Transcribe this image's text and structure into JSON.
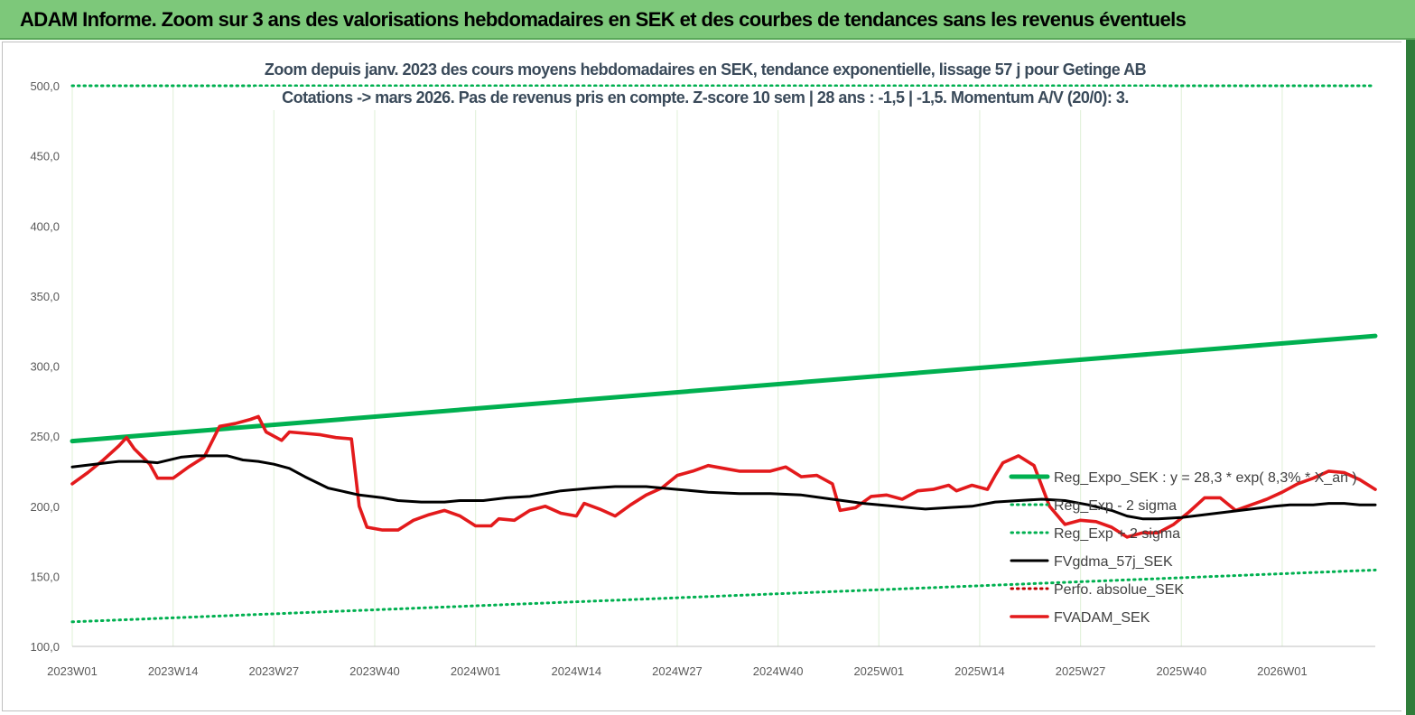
{
  "banner": {
    "title": "ADAM Informe. Zoom sur 3 ans des valorisations hebdomadaires en SEK et des courbes de tendances sans les revenus éventuels"
  },
  "colors": {
    "banner_bg": "#7dc87a",
    "reg_expo": "#00b050",
    "sigma": "#00b050",
    "fvgdma": "#000000",
    "perfo": "#c00000",
    "fvadam": "#e31a1c",
    "grid": "#e4f2dd"
  },
  "chart_data": {
    "type": "line",
    "title_lines": [
      "Zoom depuis janv. 2023 des cours moyens hebdomadaires en SEK, tendance exponentielle, lissage 57 j pour Getinge AB",
      "Cotations -> mars 2026. Pas de revenus pris en compte. Z-score 10 sem  | 28 ans : -1,5 | -1,5. Momentum A/V (20/0): 3."
    ],
    "xlabel": "",
    "ylabel": "",
    "ylim": [
      100,
      500
    ],
    "yticks": [
      "100,0",
      "150,0",
      "200,0",
      "250,0",
      "300,0",
      "350,0",
      "400,0",
      "450,0",
      "500,0"
    ],
    "x_tick_labels": [
      "2023W01",
      "2023W14",
      "2023W27",
      "2023W40",
      "2024W01",
      "2024W14",
      "2024W27",
      "2024W40",
      "2025W01",
      "2025W14",
      "2025W27",
      "2025W40",
      "2026W01"
    ],
    "weeks_total": 168,
    "grid": "vertical",
    "legend_position": "right",
    "series": [
      {
        "name": "Reg_Expo_SEK : y = 28,3 * exp( 8,3% *  X_an )",
        "style": "solid-thick",
        "color": "#00b050",
        "points": [
          [
            0,
            246.5
          ],
          [
            168,
            321.5
          ]
        ]
      },
      {
        "name": "Reg_Exp - 2 sigma",
        "style": "dotted",
        "color": "#00b050",
        "points": [
          [
            0,
            117.5
          ],
          [
            168,
            154.5
          ]
        ]
      },
      {
        "name": "Reg_Exp + 2 sigma",
        "style": "dotted",
        "color": "#00b050",
        "points": [
          [
            0,
            500
          ],
          [
            168,
            500
          ]
        ]
      },
      {
        "name": "FVgdma_57j_SEK",
        "style": "solid",
        "color": "#000000",
        "points": [
          [
            0,
            228
          ],
          [
            6,
            232
          ],
          [
            9,
            232
          ],
          [
            11,
            231
          ],
          [
            14,
            235
          ],
          [
            16,
            236
          ],
          [
            20,
            236
          ],
          [
            22,
            233
          ],
          [
            24,
            232
          ],
          [
            26,
            230
          ],
          [
            28,
            227
          ],
          [
            30,
            221
          ],
          [
            33,
            213
          ],
          [
            37,
            208
          ],
          [
            40,
            206
          ],
          [
            42,
            204
          ],
          [
            45,
            203
          ],
          [
            48,
            203
          ],
          [
            50,
            204
          ],
          [
            53,
            204
          ],
          [
            56,
            206
          ],
          [
            59,
            207
          ],
          [
            63,
            211
          ],
          [
            67,
            213
          ],
          [
            70,
            214
          ],
          [
            74,
            214
          ],
          [
            78,
            212
          ],
          [
            82,
            210
          ],
          [
            86,
            209
          ],
          [
            90,
            209
          ],
          [
            94,
            208
          ],
          [
            98,
            205
          ],
          [
            102,
            202
          ],
          [
            106,
            200
          ],
          [
            110,
            198
          ],
          [
            113,
            199
          ],
          [
            116,
            200
          ],
          [
            119,
            203
          ],
          [
            122,
            204
          ],
          [
            125,
            205
          ],
          [
            128,
            204
          ],
          [
            131,
            201
          ],
          [
            134,
            197
          ],
          [
            136,
            193
          ],
          [
            138,
            191
          ],
          [
            140,
            191
          ],
          [
            143,
            192
          ],
          [
            146,
            194
          ],
          [
            149,
            196
          ],
          [
            152,
            198
          ],
          [
            155,
            200
          ],
          [
            157,
            201
          ],
          [
            160,
            201
          ],
          [
            162,
            202
          ],
          [
            164,
            202
          ],
          [
            166,
            201
          ],
          [
            168,
            201
          ]
        ]
      },
      {
        "name": "Perfo. absolue_SEK",
        "style": "dotted",
        "color": "#c00000",
        "points": []
      },
      {
        "name": "FVADAM_SEK",
        "style": "solid-thick",
        "color": "#e31a1c",
        "points": [
          [
            0,
            216
          ],
          [
            2,
            224
          ],
          [
            4,
            233
          ],
          [
            6,
            243
          ],
          [
            7,
            249
          ],
          [
            8,
            241
          ],
          [
            10,
            230
          ],
          [
            11,
            220
          ],
          [
            13,
            220
          ],
          [
            15,
            228
          ],
          [
            17,
            235
          ],
          [
            19,
            257
          ],
          [
            21,
            259
          ],
          [
            23,
            262
          ],
          [
            24,
            264
          ],
          [
            25,
            253
          ],
          [
            27,
            247
          ],
          [
            28,
            253
          ],
          [
            30,
            252
          ],
          [
            32,
            251
          ],
          [
            34,
            249
          ],
          [
            36,
            248
          ],
          [
            37,
            200
          ],
          [
            38,
            185
          ],
          [
            40,
            183
          ],
          [
            42,
            183
          ],
          [
            44,
            190
          ],
          [
            46,
            194
          ],
          [
            48,
            197
          ],
          [
            50,
            193
          ],
          [
            52,
            186
          ],
          [
            54,
            186
          ],
          [
            55,
            191
          ],
          [
            57,
            190
          ],
          [
            59,
            197
          ],
          [
            61,
            200
          ],
          [
            63,
            195
          ],
          [
            65,
            193
          ],
          [
            66,
            202
          ],
          [
            68,
            198
          ],
          [
            70,
            193
          ],
          [
            72,
            201
          ],
          [
            74,
            208
          ],
          [
            76,
            213
          ],
          [
            78,
            222
          ],
          [
            80,
            225
          ],
          [
            82,
            229
          ],
          [
            84,
            227
          ],
          [
            86,
            225
          ],
          [
            88,
            225
          ],
          [
            90,
            225
          ],
          [
            92,
            228
          ],
          [
            94,
            221
          ],
          [
            96,
            222
          ],
          [
            98,
            216
          ],
          [
            99,
            197
          ],
          [
            101,
            199
          ],
          [
            103,
            207
          ],
          [
            105,
            208
          ],
          [
            107,
            205
          ],
          [
            109,
            211
          ],
          [
            111,
            212
          ],
          [
            113,
            215
          ],
          [
            114,
            211
          ],
          [
            116,
            215
          ],
          [
            118,
            212
          ],
          [
            119,
            222
          ],
          [
            120,
            231
          ],
          [
            122,
            236
          ],
          [
            124,
            229
          ],
          [
            126,
            200
          ],
          [
            128,
            187
          ],
          [
            130,
            190
          ],
          [
            132,
            189
          ],
          [
            134,
            185
          ],
          [
            136,
            178
          ],
          [
            138,
            181
          ],
          [
            140,
            181
          ],
          [
            142,
            187
          ],
          [
            144,
            196
          ],
          [
            146,
            206
          ],
          [
            148,
            206
          ],
          [
            150,
            197
          ],
          [
            152,
            201
          ],
          [
            154,
            205
          ],
          [
            156,
            210
          ],
          [
            158,
            216
          ],
          [
            160,
            220
          ],
          [
            162,
            225
          ],
          [
            164,
            224
          ],
          [
            166,
            219
          ],
          [
            168,
            212
          ]
        ]
      }
    ]
  }
}
